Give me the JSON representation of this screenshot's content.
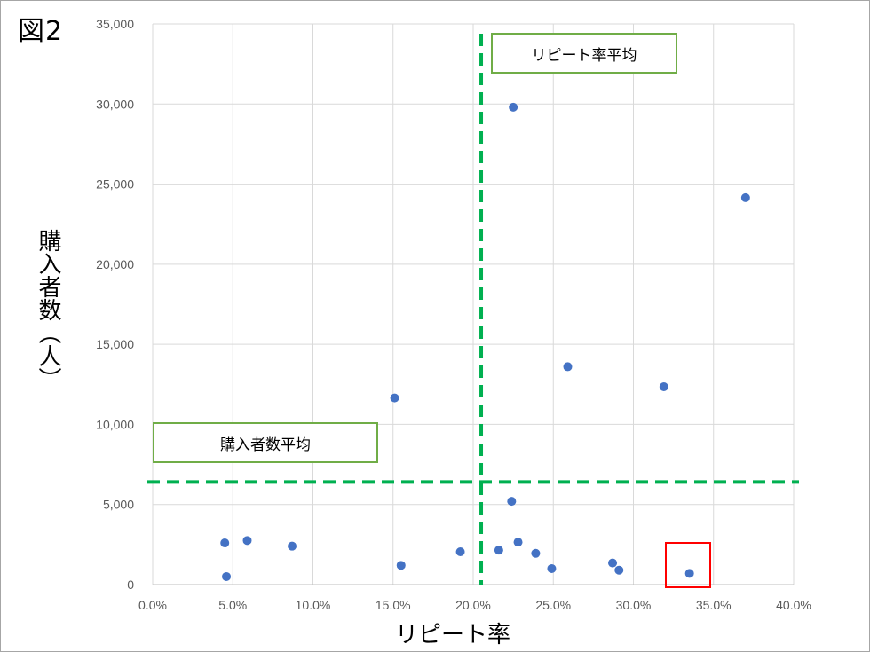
{
  "figure_label": "図2",
  "chart_data": {
    "type": "scatter",
    "title": "",
    "xlabel": "リピート率",
    "ylabel": "購入者数（人）",
    "xlim": [
      0,
      0.4
    ],
    "ylim": [
      0,
      35000
    ],
    "x_ticks": [
      "0.0%",
      "5.0%",
      "10.0%",
      "15.0%",
      "20.0%",
      "25.0%",
      "30.0%",
      "35.0%",
      "40.0%"
    ],
    "y_ticks": [
      "0",
      "5,000",
      "10,000",
      "15,000",
      "20,000",
      "25,000",
      "30,000",
      "35,000"
    ],
    "grid": true,
    "point_color": "#4472c4",
    "points": [
      {
        "x": 0.045,
        "y": 2600
      },
      {
        "x": 0.046,
        "y": 500
      },
      {
        "x": 0.059,
        "y": 2750
      },
      {
        "x": 0.087,
        "y": 2400
      },
      {
        "x": 0.151,
        "y": 11650
      },
      {
        "x": 0.155,
        "y": 1200
      },
      {
        "x": 0.192,
        "y": 2050
      },
      {
        "x": 0.216,
        "y": 2150
      },
      {
        "x": 0.225,
        "y": 29800
      },
      {
        "x": 0.224,
        "y": 5200
      },
      {
        "x": 0.228,
        "y": 2650
      },
      {
        "x": 0.239,
        "y": 1950
      },
      {
        "x": 0.249,
        "y": 1000
      },
      {
        "x": 0.259,
        "y": 13600
      },
      {
        "x": 0.287,
        "y": 1350
      },
      {
        "x": 0.291,
        "y": 900
      },
      {
        "x": 0.319,
        "y": 12350
      },
      {
        "x": 0.335,
        "y": 700
      },
      {
        "x": 0.37,
        "y": 24150
      }
    ],
    "reference_lines": {
      "color": "#00b050",
      "repeat_rate_average": 0.205,
      "buyers_average": 6400
    },
    "annotations": {
      "repeat_rate_average_label": "リピート率平均",
      "buyers_average_label": "購入者数平均"
    },
    "highlight_color": "#ff0000"
  }
}
